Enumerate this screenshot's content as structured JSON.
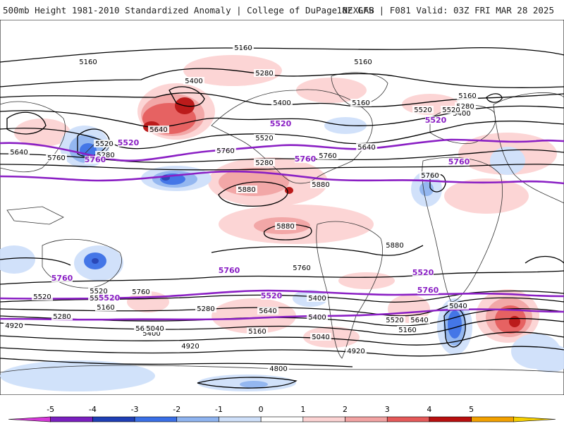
{
  "header": {
    "left": "500mb Height 1981-2010 Standardized Anomaly | College of DuPage NEXLAB",
    "right": "18Z GFS | F081 Valid: 03Z FRI MAR 28 2025"
  },
  "colorbar": {
    "ticks": [
      "-5",
      "-4",
      "-3",
      "-2",
      "-1",
      "0",
      "1",
      "2",
      "3",
      "4",
      "5"
    ],
    "colors": [
      "#d63ad9",
      "#7a1fbf",
      "#1f3fb5",
      "#3a6fe6",
      "#8fb4f0",
      "#cfe0fa",
      "#ffffff",
      "#fcd3d3",
      "#f2a3a3",
      "#e55a5a",
      "#b80f0f",
      "#f2a100",
      "#f7d000"
    ]
  },
  "contours": {
    "highlight_color": "#8a1fc4",
    "line_color": "#000000",
    "labels": [
      {
        "v": "5160"
      },
      {
        "v": "5160"
      },
      {
        "v": "5160"
      },
      {
        "v": "5160"
      },
      {
        "v": "5160"
      },
      {
        "v": "5280"
      },
      {
        "v": "5280"
      },
      {
        "v": "5280"
      },
      {
        "v": "5280"
      },
      {
        "v": "5400"
      },
      {
        "v": "5400"
      },
      {
        "v": "5400"
      },
      {
        "v": "5400"
      },
      {
        "v": "5400"
      },
      {
        "v": "5520"
      },
      {
        "v": "5520"
      },
      {
        "v": "5520"
      },
      {
        "v": "5520"
      },
      {
        "v": "5640"
      },
      {
        "v": "5640"
      },
      {
        "v": "5640"
      },
      {
        "v": "5640"
      },
      {
        "v": "5640"
      },
      {
        "v": "5640"
      },
      {
        "v": "5760"
      },
      {
        "v": "5760"
      },
      {
        "v": "5760"
      },
      {
        "v": "5760"
      },
      {
        "v": "5760"
      },
      {
        "v": "5760"
      },
      {
        "v": "5880"
      },
      {
        "v": "5880"
      },
      {
        "v": "5880"
      },
      {
        "v": "5880"
      },
      {
        "v": "5520"
      },
      {
        "v": "5520"
      },
      {
        "v": "5520"
      },
      {
        "v": "5520"
      },
      {
        "v": "5160"
      },
      {
        "v": "5160"
      },
      {
        "v": "5160"
      },
      {
        "v": "5400"
      },
      {
        "v": "5040"
      },
      {
        "v": "5040"
      },
      {
        "v": "5040"
      },
      {
        "v": "5280"
      },
      {
        "v": "5280"
      },
      {
        "v": "4920"
      },
      {
        "v": "4920"
      },
      {
        "v": "4920"
      },
      {
        "v": "4800"
      }
    ],
    "highlight_labels": [
      {
        "v": "5520"
      },
      {
        "v": "5520"
      },
      {
        "v": "5520"
      },
      {
        "v": "5760"
      },
      {
        "v": "5760"
      },
      {
        "v": "5760"
      },
      {
        "v": "5760"
      },
      {
        "v": "5760"
      },
      {
        "v": "5520"
      },
      {
        "v": "5520"
      },
      {
        "v": "5520"
      },
      {
        "v": "5760"
      }
    ]
  }
}
